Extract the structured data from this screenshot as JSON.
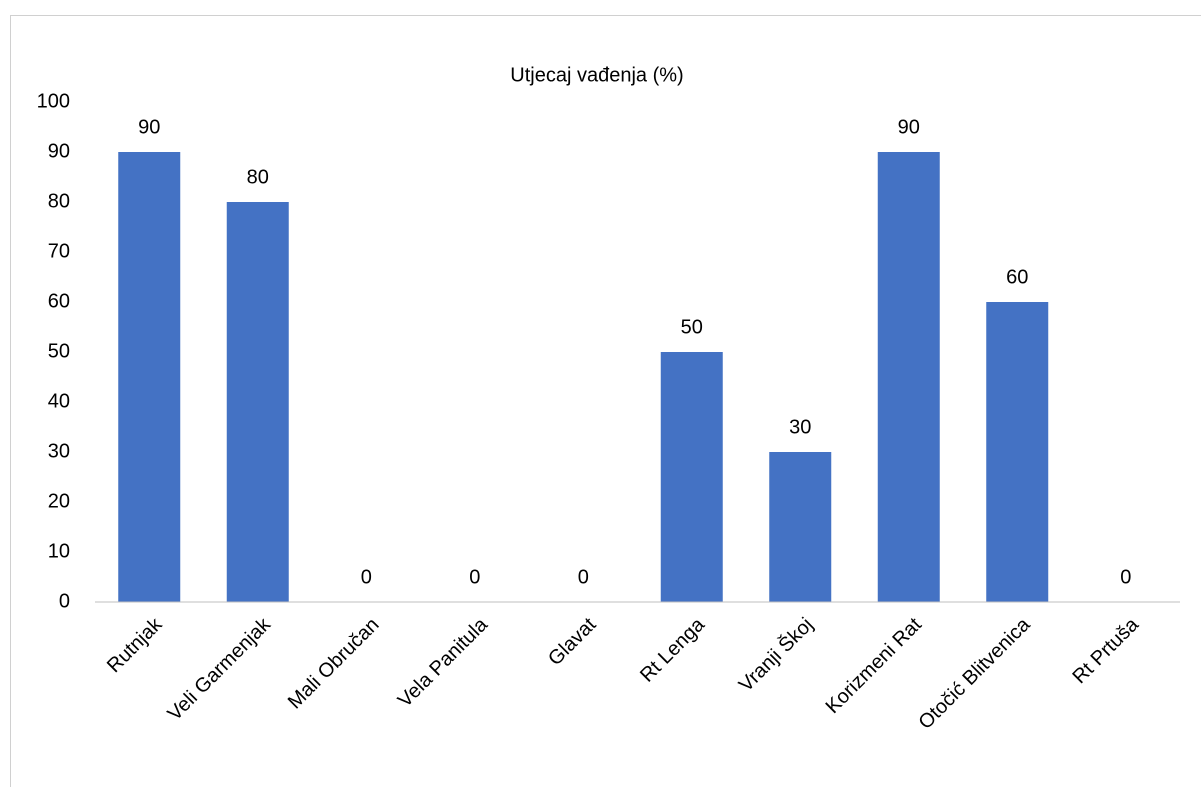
{
  "chart_data": {
    "type": "bar",
    "title": "Utjecaj vađenja (%)",
    "categories": [
      "Rutnjak",
      "Veli Garmenjak",
      "Mali Obručan",
      "Vela Panitula",
      "Glavat",
      "Rt Lenga",
      "Vranji Škoj",
      "Korizmeni Rat",
      "Otočić Blitvenica",
      "Rt Prtuša"
    ],
    "values": [
      90,
      80,
      0,
      0,
      0,
      50,
      30,
      90,
      60,
      0
    ],
    "color": "#4472c4",
    "ylim": [
      0,
      100
    ],
    "yticks": [
      0,
      10,
      20,
      30,
      40,
      50,
      60,
      70,
      80,
      90,
      100
    ],
    "grid": false
  }
}
